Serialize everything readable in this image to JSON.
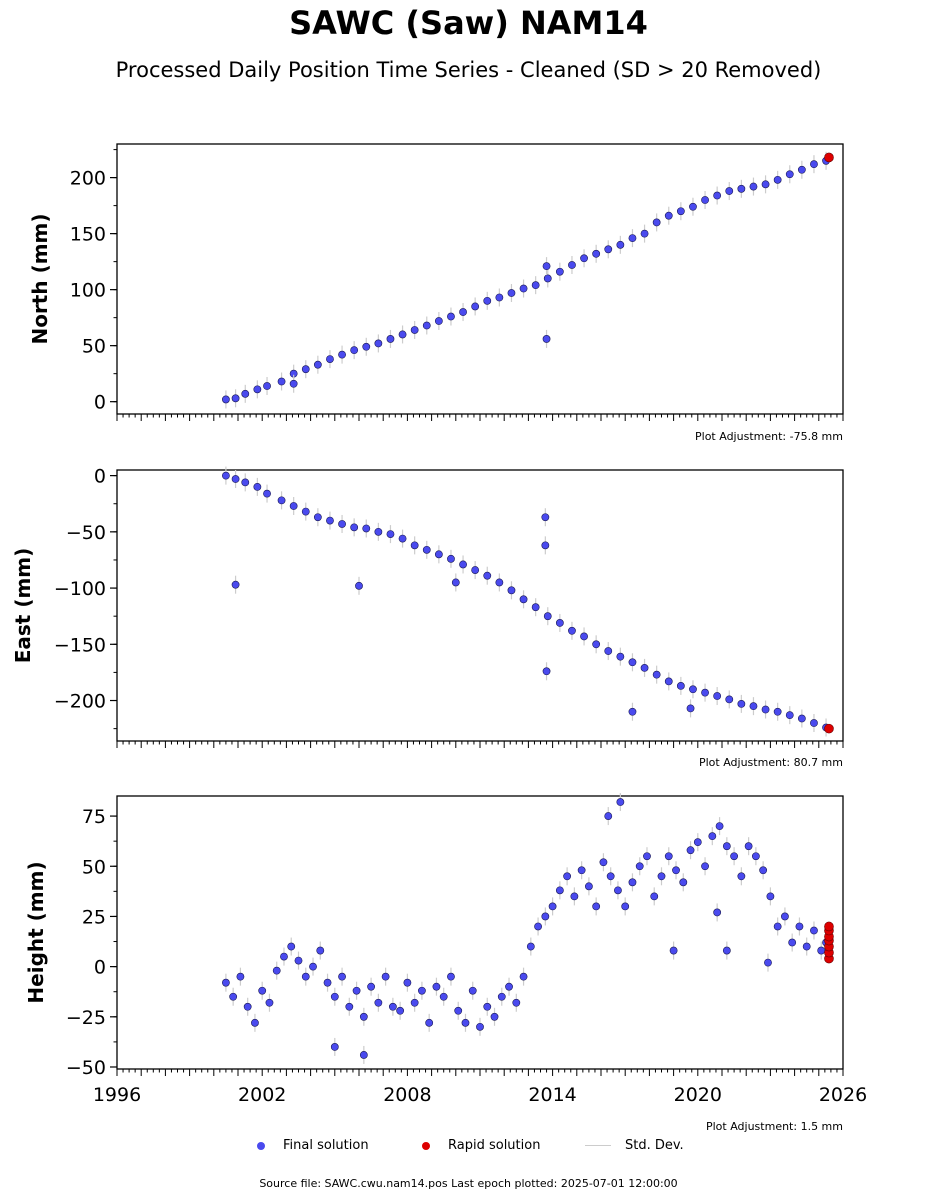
{
  "title": "SAWC (Saw) NAM14",
  "subtitle": "Processed Daily Position Time Series - Cleaned (SD > 20 Removed)",
  "legend": {
    "final": "Final solution",
    "rapid": "Rapid solution",
    "std": "Std. Dev."
  },
  "footer": "Source file: SAWC.cwu.nam14.pos  Last epoch plotted: 2025-07-01 12:00:00",
  "colors": {
    "final": "#4a4aee",
    "rapid": "#dd0000",
    "std": "#cccccc"
  },
  "chart_data": [
    {
      "type": "scatter",
      "ylabel": "North (mm)",
      "adjustment": "Plot Adjustment: -75.8 mm",
      "xlim": [
        1996,
        2026
      ],
      "ylim": [
        -11,
        230
      ],
      "yticks": [
        0,
        50,
        100,
        150,
        200
      ],
      "ytick_labels": [
        "0",
        "50",
        "100",
        "150",
        "200"
      ],
      "series": [
        {
          "name": "Final solution",
          "x": [
            2000.5,
            2000.9,
            2001.3,
            2001.8,
            2002.2,
            2002.8,
            2003.3,
            2003.8,
            2004.3,
            2004.8,
            2005.3,
            2005.8,
            2006.3,
            2006.8,
            2007.3,
            2007.8,
            2008.3,
            2008.8,
            2009.3,
            2009.8,
            2010.3,
            2010.8,
            2011.3,
            2011.8,
            2012.3,
            2012.8,
            2013.3,
            2013.8,
            2014.3,
            2014.8,
            2015.3,
            2015.8,
            2016.3,
            2016.8,
            2017.3,
            2017.8,
            2018.3,
            2018.8,
            2019.3,
            2019.8,
            2020.3,
            2020.8,
            2021.3,
            2021.8,
            2022.3,
            2022.8,
            2023.3,
            2023.8,
            2024.3,
            2024.8,
            2025.3,
            2003.3,
            2013.75,
            2013.75
          ],
          "y": [
            2,
            3,
            7,
            11,
            14,
            18,
            25,
            29,
            33,
            38,
            42,
            46,
            49,
            52,
            56,
            60,
            64,
            68,
            72,
            76,
            80,
            85,
            90,
            93,
            97,
            101,
            104,
            110,
            116,
            122,
            128,
            132,
            136,
            140,
            146,
            150,
            160,
            166,
            170,
            174,
            180,
            184,
            188,
            190,
            192,
            194,
            198,
            203,
            207,
            212,
            215,
            16,
            56,
            121
          ]
        },
        {
          "name": "Rapid solution",
          "x": [
            2025.42
          ],
          "y": [
            218
          ]
        }
      ]
    },
    {
      "type": "scatter",
      "ylabel": "East (mm)",
      "adjustment": "Plot Adjustment: 80.7 mm",
      "xlim": [
        1996,
        2026
      ],
      "ylim": [
        -236,
        5
      ],
      "yticks": [
        0,
        -50,
        -100,
        -150,
        -200
      ],
      "ytick_labels": [
        "0",
        "−50",
        "−100",
        "−150",
        "−200"
      ],
      "series": [
        {
          "name": "Final solution",
          "x": [
            2000.5,
            2000.9,
            2001.3,
            2001.8,
            2002.2,
            2002.8,
            2003.3,
            2003.8,
            2004.3,
            2004.8,
            2005.3,
            2005.8,
            2006.3,
            2006.8,
            2007.3,
            2007.8,
            2008.3,
            2008.8,
            2009.3,
            2009.8,
            2010.3,
            2010.8,
            2011.3,
            2011.8,
            2012.3,
            2012.8,
            2013.3,
            2013.8,
            2014.3,
            2014.8,
            2015.3,
            2015.8,
            2016.3,
            2016.8,
            2017.3,
            2017.8,
            2018.3,
            2018.8,
            2019.3,
            2019.8,
            2020.3,
            2020.8,
            2021.3,
            2021.8,
            2022.3,
            2022.8,
            2023.3,
            2023.8,
            2024.3,
            2024.8,
            2025.3,
            2000.9,
            2006.0,
            2013.7,
            2013.7,
            2013.75,
            2017.3,
            2019.7,
            2010.0
          ],
          "y": [
            0,
            -3,
            -6,
            -10,
            -16,
            -22,
            -27,
            -32,
            -37,
            -40,
            -43,
            -46,
            -47,
            -50,
            -52,
            -56,
            -62,
            -66,
            -70,
            -74,
            -79,
            -84,
            -89,
            -95,
            -102,
            -110,
            -117,
            -125,
            -131,
            -138,
            -143,
            -150,
            -156,
            -161,
            -166,
            -171,
            -177,
            -183,
            -187,
            -190,
            -193,
            -196,
            -199,
            -203,
            -205,
            -208,
            -210,
            -213,
            -216,
            -220,
            -224,
            -97,
            -98,
            -62,
            -37,
            -174,
            -210,
            -207,
            -95
          ]
        },
        {
          "name": "Rapid solution",
          "x": [
            2025.42
          ],
          "y": [
            -225
          ]
        }
      ]
    },
    {
      "type": "scatter",
      "ylabel": "Height (mm)",
      "adjustment": "Plot Adjustment: 1.5 mm",
      "xlim": [
        1996,
        2026
      ],
      "ylim": [
        -51,
        85
      ],
      "yticks": [
        -50,
        -25,
        0,
        25,
        50,
        75
      ],
      "ytick_labels": [
        "−50",
        "−25",
        "0",
        "25",
        "50",
        "75"
      ],
      "xticks": [
        1996,
        2002,
        2008,
        2014,
        2020,
        2026
      ],
      "xtick_labels": [
        "1996",
        "2002",
        "2008",
        "2014",
        "2020",
        "2026"
      ],
      "series": [
        {
          "name": "Final solution",
          "x": [
            2000.5,
            2000.8,
            2001.1,
            2001.4,
            2001.7,
            2002.0,
            2002.3,
            2002.6,
            2002.9,
            2003.2,
            2003.5,
            2003.8,
            2004.1,
            2004.4,
            2004.7,
            2005.0,
            2005.3,
            2005.6,
            2005.9,
            2006.2,
            2006.5,
            2006.8,
            2007.1,
            2007.4,
            2007.7,
            2008.0,
            2008.3,
            2008.6,
            2008.9,
            2009.2,
            2009.5,
            2009.8,
            2010.1,
            2010.4,
            2010.7,
            2011.0,
            2011.3,
            2011.6,
            2011.9,
            2012.2,
            2012.5,
            2012.8,
            2013.1,
            2013.4,
            2013.7,
            2014.0,
            2014.3,
            2014.6,
            2014.9,
            2015.2,
            2015.5,
            2015.8,
            2016.1,
            2016.4,
            2016.7,
            2017.0,
            2017.3,
            2017.6,
            2017.9,
            2018.2,
            2018.5,
            2018.8,
            2019.1,
            2019.4,
            2019.7,
            2020.0,
            2020.3,
            2020.6,
            2020.9,
            2021.2,
            2021.5,
            2021.8,
            2022.1,
            2022.4,
            2022.7,
            2023.0,
            2023.3,
            2023.6,
            2023.9,
            2024.2,
            2024.5,
            2024.8,
            2025.1,
            2025.3,
            2016.3,
            2016.8,
            2019.0,
            2020.8,
            2021.2,
            2022.9,
            2005.0,
            2006.2
          ],
          "y": [
            -8,
            -15,
            -5,
            -20,
            -28,
            -12,
            -18,
            -2,
            5,
            10,
            3,
            -5,
            0,
            8,
            -8,
            -15,
            -5,
            -20,
            -12,
            -25,
            -10,
            -18,
            -5,
            -20,
            -22,
            -8,
            -18,
            -12,
            -28,
            -10,
            -15,
            -5,
            -22,
            -28,
            -12,
            -30,
            -20,
            -25,
            -15,
            -10,
            -18,
            -5,
            10,
            20,
            25,
            30,
            38,
            45,
            35,
            48,
            40,
            30,
            52,
            45,
            38,
            30,
            42,
            50,
            55,
            35,
            45,
            55,
            48,
            42,
            58,
            62,
            50,
            65,
            70,
            60,
            55,
            45,
            60,
            55,
            48,
            35,
            20,
            25,
            12,
            20,
            10,
            18,
            8,
            12,
            75,
            82,
            8,
            27,
            8,
            2,
            -40,
            -44
          ]
        },
        {
          "name": "Rapid solution",
          "x": [
            2025.42,
            2025.42,
            2025.42,
            2025.42,
            2025.42,
            2025.42,
            2025.42
          ],
          "y": [
            4,
            7,
            10,
            13,
            15,
            18,
            20
          ]
        }
      ]
    }
  ]
}
